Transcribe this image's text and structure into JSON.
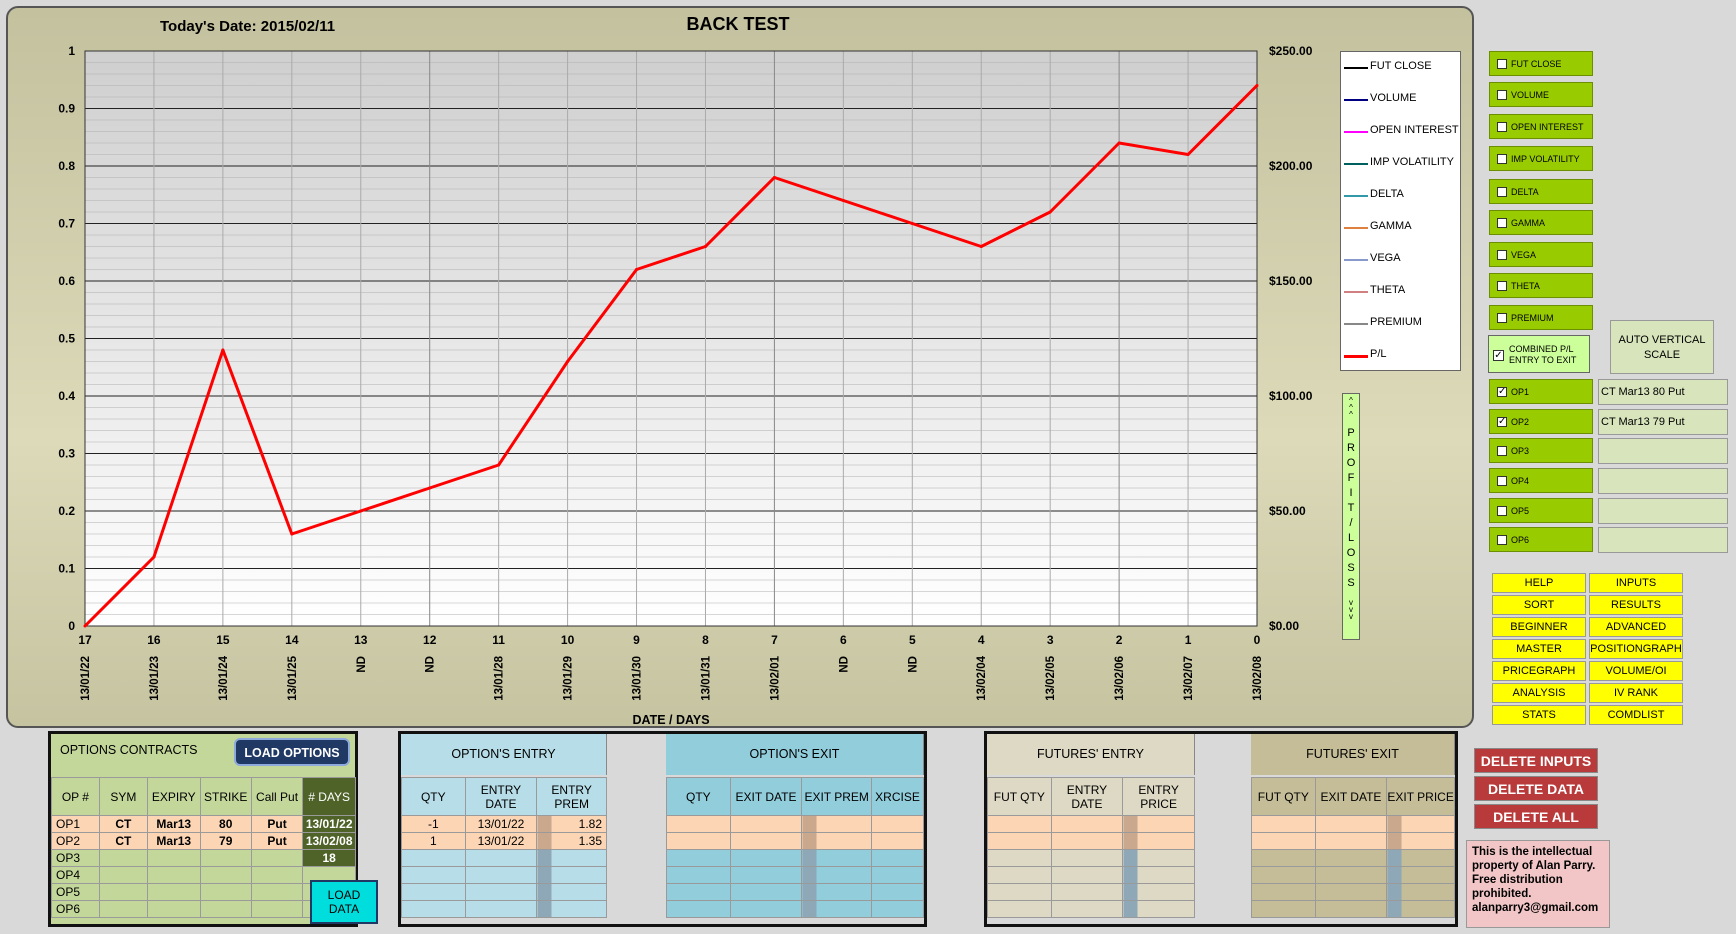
{
  "header": {
    "date_label": "Today's Date:  2015/02/11",
    "title": "BACK TEST"
  },
  "chart_data": {
    "type": "line",
    "title": "BACK TEST",
    "xlabel": "DATE / DAYS",
    "ylabel_right": "^^^ PROFIT/LOSS vvv",
    "x_days": [
      "17",
      "16",
      "15",
      "14",
      "13",
      "12",
      "11",
      "10",
      "9",
      "8",
      "7",
      "6",
      "5",
      "4",
      "3",
      "2",
      "1",
      "0"
    ],
    "x_dates": [
      "13/01/22",
      "13/01/23",
      "13/01/24",
      "13/01/25",
      "ND",
      "ND",
      "13/01/28",
      "13/01/29",
      "13/01/30",
      "13/01/31",
      "13/02/01",
      "ND",
      "ND",
      "13/02/04",
      "13/02/05",
      "13/02/06",
      "13/02/07",
      "13/02/08"
    ],
    "left_ticks": [
      "0",
      "0.1",
      "0.2",
      "0.3",
      "0.4",
      "0.5",
      "0.6",
      "0.7",
      "0.8",
      "0.9",
      "1"
    ],
    "right_ticks": [
      "$0.00",
      "$50.00",
      "$100.00",
      "$150.00",
      "$200.00",
      "$250.00"
    ],
    "ylim_left": [
      0,
      1
    ],
    "ylim_right": [
      0,
      250
    ],
    "grid": true,
    "legend_placement": "right",
    "series": [
      {
        "name": "P/L",
        "color": "#ff0000",
        "values": [
          0,
          30,
          120,
          40,
          50,
          60,
          70,
          115,
          155,
          165,
          195,
          185,
          175,
          165,
          180,
          210,
          205,
          235
        ]
      }
    ],
    "legend": [
      {
        "name": "FUT CLOSE",
        "color": "#000000"
      },
      {
        "name": "VOLUME",
        "color": "#000080"
      },
      {
        "name": "OPEN INTEREST",
        "color": "#ff00ff"
      },
      {
        "name": "IMP VOLATILITY",
        "color": "#006060"
      },
      {
        "name": "DELTA",
        "color": "#3399aa"
      },
      {
        "name": "GAMMA",
        "color": "#e08040"
      },
      {
        "name": "VEGA",
        "color": "#8899cc"
      },
      {
        "name": "THETA",
        "color": "#d08080"
      },
      {
        "name": "PREMIUM",
        "color": "#888888"
      },
      {
        "name": "P/L",
        "color": "#ff0000"
      }
    ]
  },
  "checkboxes": [
    {
      "label": "FUT CLOSE",
      "checked": false
    },
    {
      "label": "VOLUME",
      "checked": false
    },
    {
      "label": "OPEN  INTEREST",
      "checked": false
    },
    {
      "label": "IMP VOLATILITY",
      "checked": false
    },
    {
      "label": "DELTA",
      "checked": false
    },
    {
      "label": "GAMMA",
      "checked": false
    },
    {
      "label": "VEGA",
      "checked": false
    },
    {
      "label": "THETA",
      "checked": false
    },
    {
      "label": "PREMIUM",
      "checked": false
    }
  ],
  "combined": {
    "line1": "COMBINED  P/L",
    "line2": "ENTRY TO  EXIT",
    "checked": true
  },
  "auto_scale": {
    "line1": "AUTO VERTICAL",
    "line2": "SCALE"
  },
  "op_checks": [
    {
      "label": "OP1",
      "checked": true,
      "name": "CT Mar13 80 Put"
    },
    {
      "label": "OP2",
      "checked": true,
      "name": "CT Mar13 79 Put"
    },
    {
      "label": "OP3",
      "checked": false,
      "name": ""
    },
    {
      "label": "OP4",
      "checked": false,
      "name": ""
    },
    {
      "label": "OP5",
      "checked": false,
      "name": ""
    },
    {
      "label": "OP6",
      "checked": false,
      "name": ""
    }
  ],
  "nav_buttons": [
    [
      "HELP",
      "INPUTS"
    ],
    [
      "SORT",
      "RESULTS"
    ],
    [
      "BEGINNER",
      "ADVANCED"
    ],
    [
      "MASTER",
      "POSITIONGRAPH"
    ],
    [
      "PRICEGRAPH",
      "VOLUME/OI"
    ],
    [
      "ANALYSIS",
      "IV RANK"
    ],
    [
      "STATS",
      "COMDLIST"
    ]
  ],
  "delete_buttons": [
    "DELETE INPUTS",
    "DELETE DATA",
    "DELETE ALL"
  ],
  "notice": "This is the intellectual property of Alan Parry. Free distribution prohibited. alanparry3@gmail.com",
  "options_contracts": {
    "title": "OPTIONS CONTRACTS",
    "load_options": "LOAD OPTIONS",
    "load_data": "LOAD DATA",
    "headers": [
      "OP #",
      "SYM",
      "EXPIRY",
      "STRIKE",
      "Call  Put",
      "# DAYS"
    ],
    "rows": [
      [
        "OP1",
        "CT",
        "Mar13",
        "80",
        "Put",
        "13/01/22"
      ],
      [
        "OP2",
        "CT",
        "Mar13",
        "79",
        "Put",
        "13/02/08"
      ],
      [
        "OP3",
        "",
        "",
        "",
        "",
        "18"
      ],
      [
        "OP4",
        "",
        "",
        "",
        "",
        ""
      ],
      [
        "OP5",
        "",
        "",
        "",
        "",
        ""
      ],
      [
        "OP6",
        "",
        "",
        "",
        "",
        ""
      ]
    ]
  },
  "option_entry": {
    "title": "OPTION'S ENTRY",
    "headers": [
      "QTY",
      "ENTRY DATE",
      "ENTRY PREM"
    ],
    "rows": [
      [
        "-1",
        "13/01/22",
        "1.82"
      ],
      [
        "1",
        "13/01/22",
        "1.35"
      ],
      [
        "",
        "",
        ""
      ],
      [
        "",
        "",
        ""
      ],
      [
        "",
        "",
        ""
      ],
      [
        "",
        "",
        ""
      ]
    ]
  },
  "option_exit": {
    "title": "OPTION'S EXIT",
    "headers": [
      "QTY",
      "EXIT DATE",
      "EXIT PREM",
      "XRCISE"
    ]
  },
  "futures_entry": {
    "title": "FUTURES' ENTRY",
    "headers": [
      "FUT QTY",
      "ENTRY DATE",
      "ENTRY PRICE"
    ]
  },
  "futures_exit": {
    "title": "FUTURES' EXIT",
    "headers": [
      "FUT QTY",
      "EXIT DATE",
      "EXIT PRICE"
    ]
  }
}
